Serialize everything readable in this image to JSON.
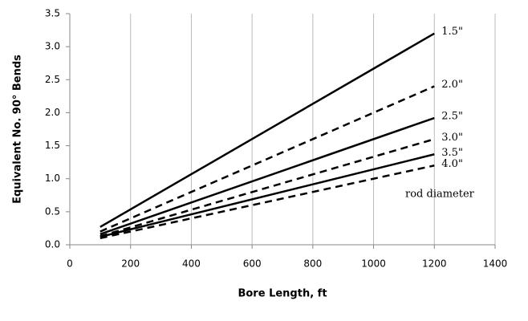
{
  "chart_data": {
    "type": "line",
    "xlabel": "Bore Length, ft",
    "ylabel": "Equivalent No. 90° Bends",
    "annotation": "rod diameter",
    "x": [
      100,
      1200
    ],
    "series": [
      {
        "name": "1.5\"",
        "color": "#000000",
        "dash": false,
        "values": [
          0.27,
          3.2
        ]
      },
      {
        "name": "2.0\"",
        "color": "#000000",
        "dash": true,
        "values": [
          0.2,
          2.4
        ]
      },
      {
        "name": "2.5\"",
        "color": "#000000",
        "dash": false,
        "values": [
          0.16,
          1.92
        ]
      },
      {
        "name": "3.0\"",
        "color": "#000000",
        "dash": true,
        "values": [
          0.13,
          1.6
        ]
      },
      {
        "name": "3.5\"",
        "color": "#000000",
        "dash": false,
        "values": [
          0.12,
          1.37
        ]
      },
      {
        "name": "4.0\"",
        "color": "#000000",
        "dash": true,
        "values": [
          0.1,
          1.2
        ]
      }
    ],
    "xlim": [
      0,
      1400
    ],
    "xticks": [
      0,
      200,
      400,
      600,
      800,
      1000,
      1200,
      1400
    ],
    "ylim": [
      0,
      3.5
    ],
    "yticks": [
      {
        "value": 0,
        "label": "0.0"
      },
      0.5,
      {
        "value": 1,
        "label": "1.0"
      },
      1.5,
      {
        "value": 2,
        "label": "2.0"
      },
      2.5,
      {
        "value": 3,
        "label": "3.0"
      },
      3.5
    ],
    "grid": "x"
  }
}
